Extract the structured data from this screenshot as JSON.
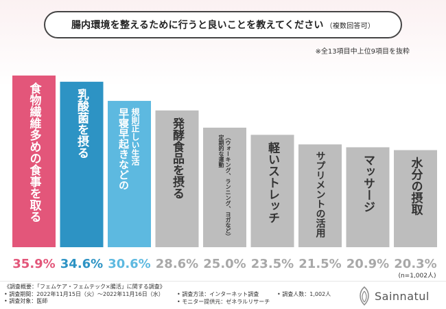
{
  "header": {
    "question": "腸内環境を整えるために行うと良いことを教えてください",
    "question_suffix": "（複数回答可）",
    "note": "※全13項目中上位9項目を抜粋"
  },
  "chart_data": {
    "type": "bar",
    "title": "腸内環境を整えるために行うと良いことを教えてください（複数回答可）",
    "unit": "%",
    "ylim": [
      0,
      40
    ],
    "grid": false,
    "n_label": "(n=1,002人)",
    "series": [
      {
        "categories": [
          "食物繊維多めの食事を取る",
          "乳酸菌を摂る",
          "早寝早起きなどの規則正しい生活",
          "発酵食品を摂る",
          "定期的な運動（ウォーキング、ランニング、ヨガなど）",
          "軽いストレッチ",
          "サプリメントの活用",
          "マッサージ",
          "水分の摂取"
        ],
        "values": [
          35.9,
          34.6,
          30.6,
          28.6,
          25.0,
          23.5,
          21.5,
          20.9,
          20.3
        ],
        "value_labels": [
          "35.9%",
          "34.6%",
          "30.6%",
          "28.6%",
          "25.0%",
          "23.5%",
          "21.5%",
          "20.9%",
          "20.3%"
        ],
        "bar_lines": [
          [
            "食物繊維多めの食事を取る"
          ],
          [
            "乳酸菌を摂る"
          ],
          [
            "規則正しい生活",
            "早寝早起きなどの"
          ],
          [
            "発酵食品を摂る"
          ],
          [
            "（ウォーキング、ランニング、ヨガなど）",
            "定期的な運動"
          ],
          [
            "軽いストレッチ"
          ],
          [
            "サプリメントの活用"
          ],
          [
            "マッサージ"
          ],
          [
            "水分の摂取"
          ]
        ],
        "colors": [
          "#e3567a",
          "#2d93c4",
          "#5db9e0",
          "#bdbdbd",
          "#bdbdbd",
          "#bdbdbd",
          "#bdbdbd",
          "#bdbdbd",
          "#bdbdbd"
        ],
        "value_colors": [
          "#e3567a",
          "#2d93c4",
          "#5db9e0",
          "#a8a8a8",
          "#a8a8a8",
          "#a8a8a8",
          "#a8a8a8",
          "#a8a8a8",
          "#a8a8a8"
        ]
      }
    ]
  },
  "footer": {
    "line1": "《調査概要：「フェムケア・フェムテック×腸活」に関する調査》",
    "line2": "• 調査期間：2022年11月15日（火）～2022年11月16日（水）",
    "line3": "• 調査対象：医師",
    "line4": "• 調査方法：インターネット調査",
    "line5": "• モニター提供元：ゼネラルリサーチ",
    "line6": "• 調査人数：1,002人"
  },
  "brand": {
    "name": "Sainnatul",
    "logo_icon": "leaf-icon",
    "logo_color": "#8a8a8a"
  }
}
